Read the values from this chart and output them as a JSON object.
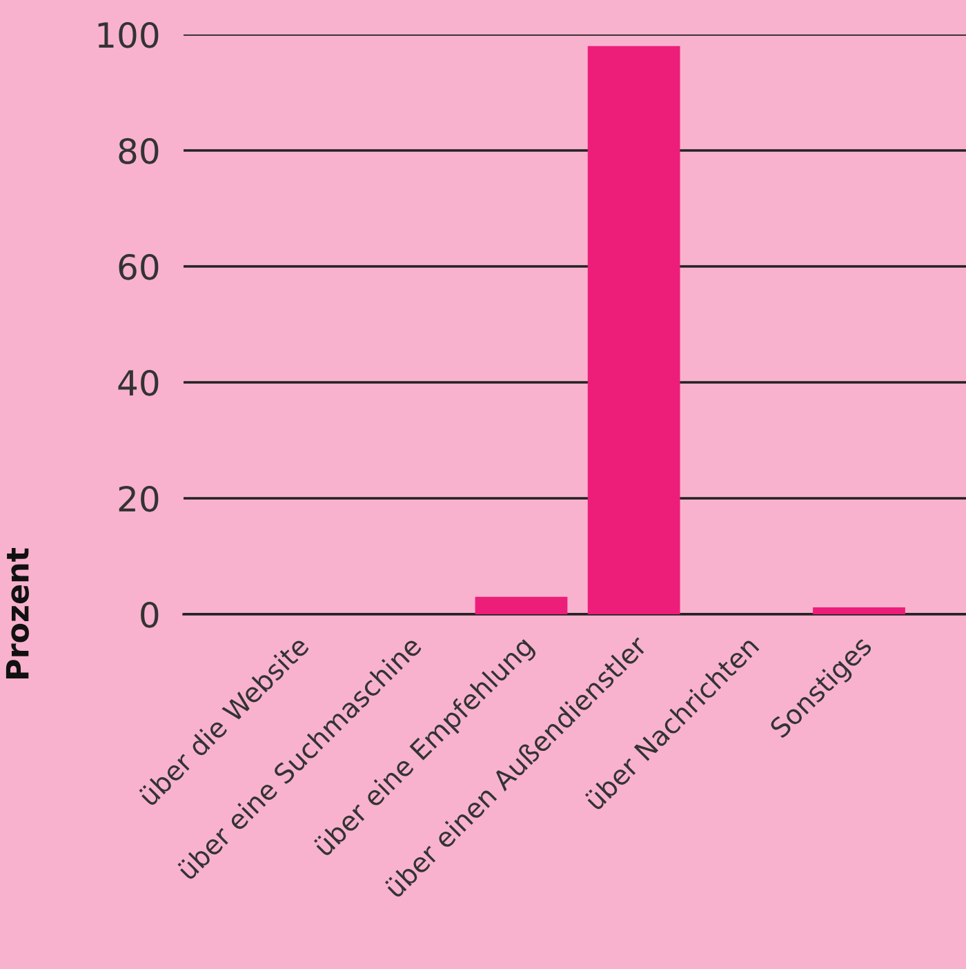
{
  "chart_data": {
    "type": "bar",
    "ylabel": "Prozent",
    "categories": [
      "über die Website",
      "über eine Suchmaschine",
      "über eine Empfehlung",
      "über einen Außendienstler",
      "über Nachrichten",
      "Sonstiges"
    ],
    "values": [
      0,
      0,
      3,
      98,
      0,
      1.2
    ],
    "color": "#ed1e79",
    "ylim": [
      0,
      100
    ],
    "yticks": [
      0,
      20,
      40,
      60,
      80,
      100
    ],
    "grid": "y"
  }
}
